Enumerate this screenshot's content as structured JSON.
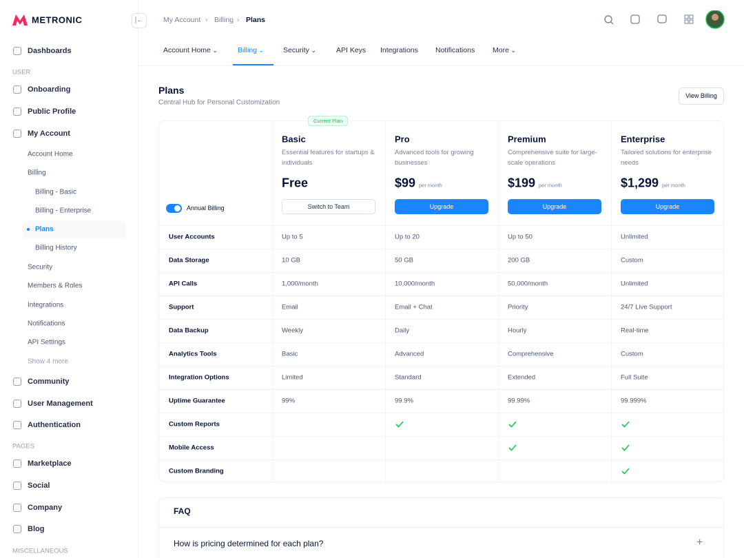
{
  "brand": "METRONIC",
  "sidebar": {
    "items": [
      "Dashboards",
      "USER",
      "Onboarding",
      "Public Profile",
      "My Account",
      "Account Home",
      "Billing",
      "Billing - Basic",
      "Billing - Enterprise",
      "Plans",
      "Billing History",
      "Security",
      "Members & Roles",
      "Integrations",
      "Notifications",
      "API Settings",
      "Show 4 more",
      "Community",
      "User Management",
      "Authentication",
      "PAGES",
      "Marketplace",
      "Social",
      "Company",
      "Blog",
      "MISCELLANEOUS"
    ]
  },
  "breadcrumb": [
    "My Account",
    "Billing",
    "Plans"
  ],
  "tabs": [
    "Account Home",
    "Billing",
    "Security",
    "API Keys",
    "Integrations",
    "Notifications",
    "More"
  ],
  "page": {
    "title": "Plans",
    "subtitle": "Central Hub for Personal Customization",
    "button": "View Billing"
  },
  "plans_table": {
    "toggle": "Annual Billing",
    "badge": "Current Plan",
    "plans": [
      {
        "name": "Basic",
        "description": "Essential features for startups & individuals",
        "price": "Free",
        "button": "Switch to Team"
      },
      {
        "name": "Pro",
        "description": "Advanced tools for growing businesses",
        "price": "$99",
        "period": "per month",
        "button": "Upgrade"
      },
      {
        "name": "Premium",
        "description": "Comprehensive suite for large-scale operations",
        "price": "$199",
        "period": "per month",
        "button": "Upgrade"
      },
      {
        "name": "Enterprise",
        "description": "Tailored solutions for enterprise needs",
        "price": "$1,299",
        "period": "per month",
        "button": "Upgrade"
      }
    ],
    "rows": [
      {
        "feature": "User Accounts",
        "values": [
          "Up to 5",
          "Up to 20",
          "Up to 50",
          "Unlimited"
        ]
      },
      {
        "feature": "Data Storage",
        "values": [
          "10 GB",
          "50 GB",
          "200 GB",
          "Custom"
        ]
      },
      {
        "feature": "API Calls",
        "values": [
          "1,000/month",
          "10,000/month",
          "50,000/month",
          "Unlimited"
        ]
      },
      {
        "feature": "Support",
        "values": [
          "Email",
          "Email + Chat",
          "Priority",
          "24/7 Live Support"
        ]
      },
      {
        "feature": "Data Backup",
        "values": [
          "Weekly",
          "Daily",
          "Hourly",
          "Real-time"
        ]
      },
      {
        "feature": "Analytics Tools",
        "values": [
          "Basic",
          "Advanced",
          "Comprehensive",
          "Custom"
        ]
      },
      {
        "feature": "Integration Options",
        "values": [
          "Limited",
          "Standard",
          "Extended",
          "Full Suite"
        ]
      },
      {
        "feature": "Uptime Guarantee",
        "values": [
          "99%",
          "99.9%",
          "99.99%",
          "99.999%"
        ]
      },
      {
        "feature": "Custom Reports",
        "values": [
          null,
          true,
          true,
          true
        ]
      },
      {
        "feature": "Mobile Access",
        "values": [
          null,
          null,
          true,
          true
        ]
      },
      {
        "feature": "Custom Branding",
        "values": [
          null,
          null,
          null,
          true
        ]
      }
    ]
  },
  "faq": {
    "title": "FAQ",
    "questions": [
      "How is pricing determined for each plan?"
    ]
  }
}
